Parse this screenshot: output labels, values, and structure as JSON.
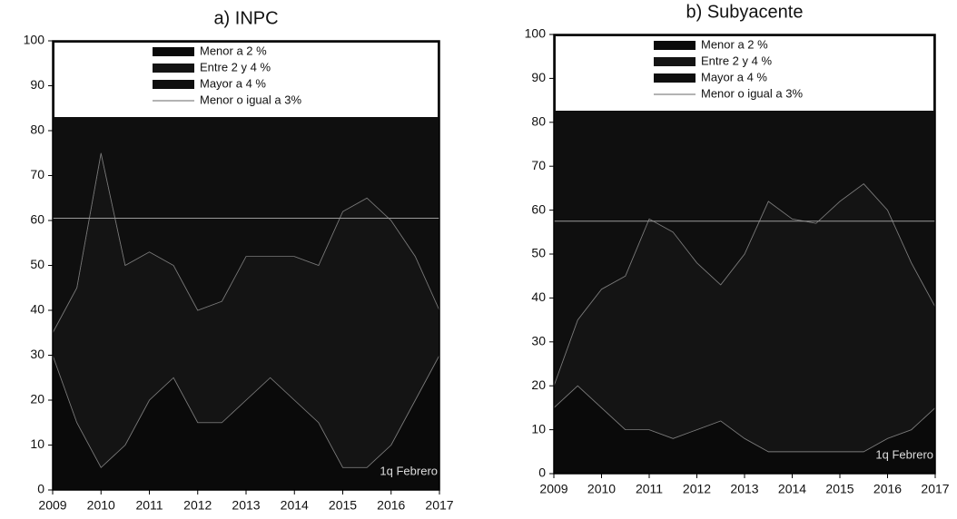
{
  "chart_data": [
    {
      "type": "stacked_area",
      "title": "a) INPC",
      "x": [
        2009,
        2009.5,
        2010,
        2010.5,
        2011,
        2011.5,
        2012,
        2012.5,
        2013,
        2013.5,
        2014,
        2014.5,
        2015,
        2015.5,
        2016,
        2016.5,
        2017
      ],
      "series": [
        {
          "name": "Menor a 2 %",
          "color": "#0a0a0a",
          "values": [
            30,
            15,
            5,
            10,
            20,
            25,
            15,
            15,
            20,
            25,
            20,
            15,
            5,
            5,
            10,
            20,
            30
          ]
        },
        {
          "name": "Entre 2 y 4 %",
          "color": "#141414",
          "values": [
            5,
            30,
            70,
            40,
            33,
            25,
            25,
            27,
            32,
            27,
            32,
            35,
            57,
            60,
            50,
            32,
            10
          ]
        },
        {
          "name": "Mayor a 4 %",
          "color": "#0f0f0f",
          "values": [
            65,
            55,
            25,
            50,
            47,
            50,
            60,
            58,
            48,
            48,
            48,
            50,
            38,
            35,
            40,
            48,
            60
          ]
        }
      ],
      "reference_line": {
        "name": "Menor o igual a 3%",
        "color": "#9a9a9a",
        "value": 60.5
      },
      "annotation": "1q Febrero",
      "xlim": [
        2009,
        2017
      ],
      "xticks": [
        2009,
        2010,
        2011,
        2012,
        2013,
        2014,
        2015,
        2016,
        2017
      ],
      "ylim": [
        0,
        100
      ],
      "yticks": [
        0,
        10,
        20,
        30,
        40,
        50,
        60,
        70,
        80,
        90,
        100
      ]
    },
    {
      "type": "stacked_area",
      "title": "b) Subyacente",
      "x": [
        2009,
        2009.5,
        2010,
        2010.5,
        2011,
        2011.5,
        2012,
        2012.5,
        2013,
        2013.5,
        2014,
        2014.5,
        2015,
        2015.5,
        2016,
        2016.5,
        2017
      ],
      "series": [
        {
          "name": "Menor a 2 %",
          "color": "#0a0a0a",
          "values": [
            15,
            20,
            15,
            10,
            10,
            8,
            10,
            12,
            8,
            5,
            5,
            5,
            5,
            5,
            8,
            10,
            15
          ]
        },
        {
          "name": "Entre 2 y 4 %",
          "color": "#141414",
          "values": [
            5,
            15,
            27,
            35,
            48,
            47,
            38,
            31,
            42,
            57,
            53,
            52,
            57,
            61,
            52,
            38,
            23
          ]
        },
        {
          "name": "Mayor a 4 %",
          "color": "#0f0f0f",
          "values": [
            80,
            65,
            58,
            55,
            42,
            45,
            52,
            57,
            50,
            38,
            42,
            43,
            38,
            34,
            40,
            52,
            62
          ]
        }
      ],
      "reference_line": {
        "name": "Menor o igual a 3%",
        "color": "#9a9a9a",
        "value": 57.5
      },
      "annotation": "1q Febrero",
      "xlim": [
        2009,
        2017
      ],
      "xticks": [
        2009,
        2010,
        2011,
        2012,
        2013,
        2014,
        2015,
        2016,
        2017
      ],
      "ylim": [
        0,
        100
      ],
      "yticks": [
        0,
        10,
        20,
        30,
        40,
        50,
        60,
        70,
        80,
        90,
        100
      ]
    }
  ]
}
